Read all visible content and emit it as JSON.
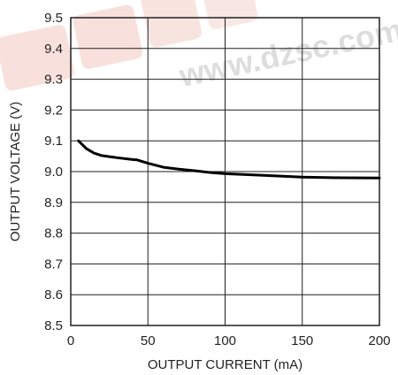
{
  "watermark": {
    "text": "www.dzsc.com",
    "text_color": "#c8c8c8",
    "logo_color": "#f2c9c0"
  },
  "chart_data": {
    "type": "line",
    "title": "",
    "xlabel": "OUTPUT CURRENT (mA)",
    "ylabel": "OUTPUT VOLTAGE (V)",
    "xlim": [
      0,
      200
    ],
    "ylim": [
      8.5,
      9.5
    ],
    "x_ticks": [
      0,
      50,
      100,
      150,
      200
    ],
    "y_ticks": [
      8.5,
      8.6,
      8.7,
      8.8,
      8.9,
      9.0,
      9.1,
      9.2,
      9.3,
      9.4,
      9.5
    ],
    "x_tick_labels": [
      "0",
      "50",
      "100",
      "150",
      "200"
    ],
    "y_tick_labels": [
      "8.5",
      "8.6",
      "8.7",
      "8.8",
      "8.9",
      "9.0",
      "9.1",
      "9.2",
      "9.3",
      "9.4",
      "9.5"
    ],
    "grid": true,
    "line_color": "#000000",
    "series": [
      {
        "x": [
          5,
          10,
          15,
          20,
          30,
          40,
          43,
          50,
          60,
          70,
          80,
          90,
          100,
          125,
          150,
          175,
          200
        ],
        "y": [
          9.1,
          9.075,
          9.06,
          9.052,
          9.045,
          9.039,
          9.038,
          9.027,
          9.014,
          9.008,
          9.003,
          8.997,
          8.993,
          8.988,
          8.982,
          8.98,
          8.979
        ]
      }
    ]
  }
}
